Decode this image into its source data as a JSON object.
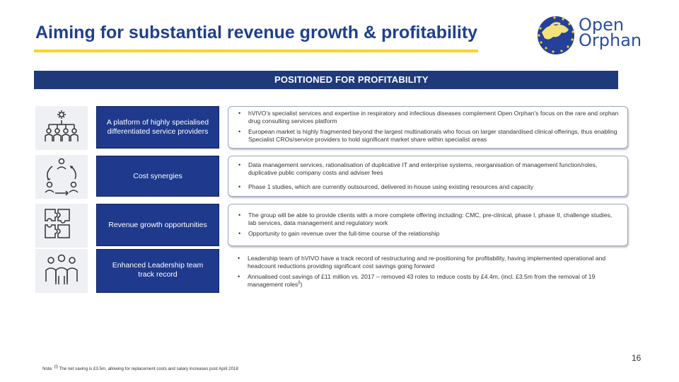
{
  "header": {
    "title": "Aiming for substantial revenue growth & profitability",
    "logo_line1": "Open",
    "logo_line2": "Orphan"
  },
  "banner": {
    "label": "POSITIONED FOR PROFITABILITY"
  },
  "rows": [
    {
      "icon": "org-hierarchy-icon",
      "label": "A platform of highly specialised differentiated service providers",
      "bullets": [
        "hVIVO’s specialist services and expertise in respiratory and infectious diseases complement Open Orphan’s focus on the rare and orphan drug consulting services platform",
        "European market is highly fragmented beyond the largest multinationals who focus on larger standardised clinical offerings, thus enabling Specialist CROs/service providers to hold significant market share within specialist areas"
      ]
    },
    {
      "icon": "people-cycle-icon",
      "label": "Cost synergies",
      "bullets": [
        "Data management services, rationalisation of duplicative IT and enterprise systems, reorganisation of management function/roles, duplicative public company costs and adviser fees",
        "Phase 1 studies, which are currently outsourced, delivered in-house using existing resources and capacity"
      ]
    },
    {
      "icon": "puzzle-icon",
      "label": "Revenue growth opportunities",
      "bullets": [
        "The group will be able to provide clients with a more complete offering including: CMC, pre-clinical, phase I, phase II, challenge studies, lab services, data management and regulatory work",
        "Opportunity to gain revenue over the full-time course of the relationship"
      ]
    },
    {
      "icon": "team-icon",
      "label": "Enhanced Leadership team track record",
      "bullets": [
        "Leadership team of hVIVO have a track record of restructuring and re-positioning for profitability, having implemented operational and headcount reductions providing significant cost savings going forward",
        "Annualised cost savings of £11 million vs. 2017 – removed 43 roles to reduce costs by £4.4m, (incl. £3.5m from the removal of 19 management roles"
      ],
      "bullet_suffix": ")",
      "bullet_sup": "(i"
    }
  ],
  "footer": {
    "page_number": "16",
    "note_prefix": "Note: ",
    "note_sup": "(i)",
    "note_text": " The net saving is £3.5m, allowing for replacement costs and salary increases post April 2018"
  }
}
